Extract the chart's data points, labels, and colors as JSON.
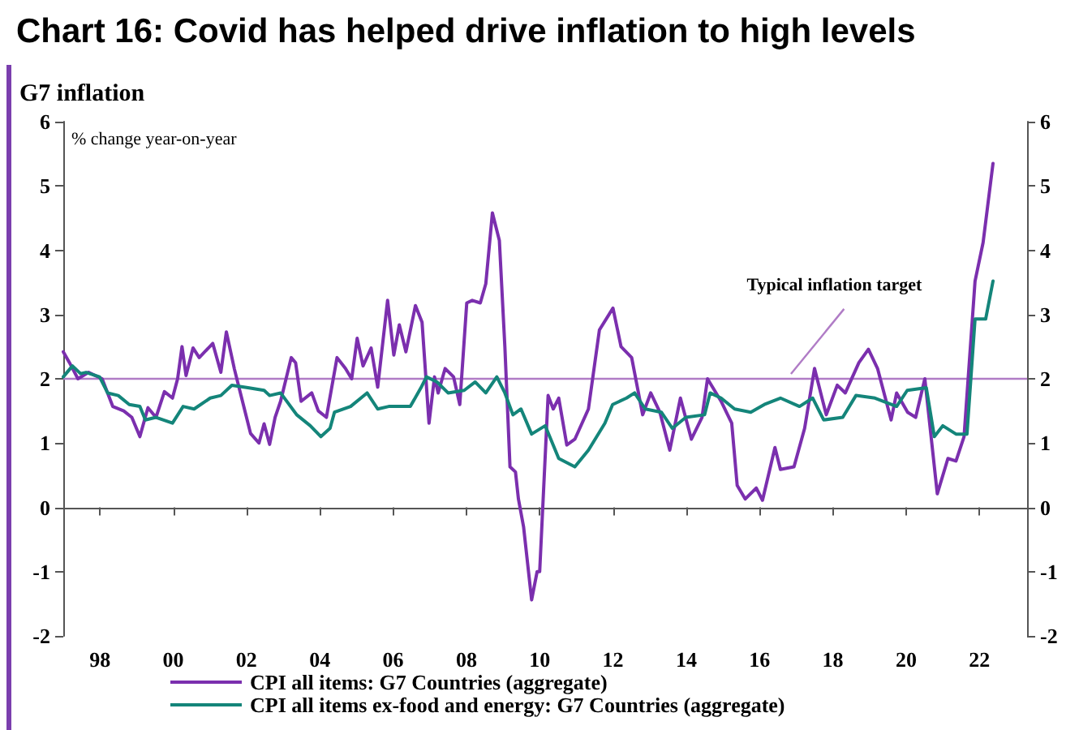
{
  "chart_data": {
    "type": "line",
    "title": "Chart 16: Covid has helped drive inflation to high levels",
    "subtitle": "G7 inflation",
    "ylabel": "% change year-on-year",
    "xlim": [
      1997,
      2023.3
    ],
    "xticks": [
      {
        "value": 1998,
        "label": "98"
      },
      {
        "value": 2000,
        "label": "00"
      },
      {
        "value": 2002,
        "label": "02"
      },
      {
        "value": 2004,
        "label": "04"
      },
      {
        "value": 2006,
        "label": "06"
      },
      {
        "value": 2008,
        "label": "08"
      },
      {
        "value": 2010,
        "label": "10"
      },
      {
        "value": 2012,
        "label": "12"
      },
      {
        "value": 2014,
        "label": "14"
      },
      {
        "value": 2016,
        "label": "16"
      },
      {
        "value": 2018,
        "label": "18"
      },
      {
        "value": 2020,
        "label": "20"
      },
      {
        "value": 2022,
        "label": "22"
      }
    ],
    "ylim": [
      -2,
      6
    ],
    "yticks": [
      -2,
      -1,
      0,
      1,
      2,
      3,
      4,
      5,
      6
    ],
    "y2lim": [
      -2,
      6
    ],
    "y2ticks": [
      -2,
      -1,
      0,
      1,
      2,
      3,
      4,
      5,
      6
    ],
    "grid": false,
    "legend": "bottom",
    "marker": "none",
    "line_style": "solid",
    "ref_lines": [
      {
        "axis": "y",
        "value": 2,
        "label": "Typical inflation target",
        "color": "#b07cc6"
      }
    ],
    "series": [
      {
        "name": "CPI all items: G7 Countries (aggregate)",
        "color": "#7b2fae",
        "x": [
          1997.0,
          1997.17,
          1997.4,
          1997.69,
          1998.06,
          1998.35,
          1998.65,
          1998.87,
          1999.09,
          1999.31,
          1999.53,
          1999.76,
          1999.98,
          2000.12,
          2000.24,
          2000.35,
          2000.54,
          2000.71,
          2001.08,
          2001.3,
          2001.45,
          2001.67,
          2001.89,
          2002.11,
          2002.34,
          2002.48,
          2002.63,
          2002.78,
          2002.93,
          2003.22,
          2003.34,
          2003.49,
          2003.78,
          2003.96,
          2004.18,
          2004.47,
          2004.7,
          2004.87,
          2005.02,
          2005.18,
          2005.4,
          2005.58,
          2005.85,
          2006.02,
          2006.17,
          2006.35,
          2006.61,
          2006.79,
          2006.98,
          2007.13,
          2007.23,
          2007.42,
          2007.65,
          2007.82,
          2008.01,
          2008.16,
          2008.38,
          2008.53,
          2008.71,
          2008.9,
          2009.05,
          2009.19,
          2009.34,
          2009.42,
          2009.56,
          2009.78,
          2009.93,
          2010.0,
          2010.23,
          2010.37,
          2010.52,
          2010.74,
          2010.96,
          2011.33,
          2011.63,
          2012.0,
          2012.22,
          2012.51,
          2012.81,
          2013.03,
          2013.28,
          2013.55,
          2013.84,
          2014.14,
          2014.43,
          2014.58,
          2014.95,
          2015.24,
          2015.39,
          2015.61,
          2015.91,
          2016.08,
          2016.42,
          2016.57,
          2016.94,
          2017.23,
          2017.5,
          2017.82,
          2018.12,
          2018.34,
          2018.71,
          2018.97,
          2019.22,
          2019.59,
          2019.74,
          2020.04,
          2020.26,
          2020.51,
          2020.85,
          2021.14,
          2021.36,
          2021.58,
          2021.88,
          2022.1,
          2022.37
        ],
        "values": [
          2.42,
          2.25,
          2.0,
          2.1,
          2.0,
          1.57,
          1.5,
          1.4,
          1.1,
          1.55,
          1.4,
          1.8,
          1.7,
          2.0,
          2.5,
          2.05,
          2.48,
          2.33,
          2.55,
          2.1,
          2.73,
          2.15,
          1.65,
          1.15,
          1.0,
          1.3,
          0.98,
          1.4,
          1.65,
          2.33,
          2.25,
          1.65,
          1.78,
          1.5,
          1.4,
          2.33,
          2.16,
          2.0,
          2.63,
          2.2,
          2.48,
          1.87,
          3.22,
          2.37,
          2.84,
          2.42,
          3.14,
          2.88,
          1.31,
          2.03,
          1.78,
          2.16,
          2.03,
          1.6,
          3.18,
          3.22,
          3.18,
          3.48,
          4.58,
          4.15,
          2.5,
          0.63,
          0.55,
          0.13,
          -0.3,
          -1.44,
          -1.0,
          -1.0,
          1.74,
          1.53,
          1.7,
          0.97,
          1.06,
          1.53,
          2.76,
          3.1,
          2.5,
          2.33,
          1.44,
          1.78,
          1.48,
          0.89,
          1.7,
          1.06,
          1.4,
          2.0,
          1.65,
          1.31,
          0.34,
          0.13,
          0.3,
          0.11,
          0.93,
          0.59,
          0.63,
          1.23,
          2.16,
          1.44,
          1.9,
          1.78,
          2.25,
          2.46,
          2.16,
          1.36,
          1.78,
          1.48,
          1.4,
          2.0,
          0.21,
          0.76,
          0.72,
          1.1,
          3.52,
          4.12,
          5.35
        ]
      },
      {
        "name": "CPI all items ex-food and energy: G7 Countries (aggregate)",
        "color": "#14857a",
        "x": [
          1997.0,
          1997.25,
          1997.47,
          1997.62,
          1997.99,
          1998.21,
          1998.5,
          1998.8,
          1999.09,
          1999.24,
          1999.53,
          1999.98,
          2000.27,
          2000.57,
          2001.01,
          2001.3,
          2001.6,
          2002.04,
          2002.48,
          2002.63,
          2002.93,
          2003.37,
          2003.74,
          2004.03,
          2004.28,
          2004.4,
          2004.84,
          2005.29,
          2005.58,
          2005.88,
          2006.47,
          2006.76,
          2006.91,
          2007.2,
          2007.5,
          2007.94,
          2008.24,
          2008.53,
          2008.83,
          2009.05,
          2009.27,
          2009.49,
          2009.78,
          2010.15,
          2010.52,
          2010.96,
          2011.33,
          2011.78,
          2011.99,
          2012.37,
          2012.59,
          2012.88,
          2013.32,
          2013.62,
          2013.99,
          2014.5,
          2014.65,
          2014.95,
          2015.32,
          2015.76,
          2016.13,
          2016.57,
          2017.09,
          2017.45,
          2017.75,
          2018.27,
          2018.63,
          2019.15,
          2019.74,
          2020.03,
          2020.55,
          2020.77,
          2021.0,
          2021.36,
          2021.66,
          2021.88,
          2022.17,
          2022.37
        ],
        "values": [
          2.03,
          2.2,
          2.08,
          2.1,
          2.03,
          1.78,
          1.74,
          1.6,
          1.57,
          1.36,
          1.4,
          1.31,
          1.57,
          1.53,
          1.7,
          1.74,
          1.9,
          1.86,
          1.82,
          1.74,
          1.78,
          1.44,
          1.27,
          1.1,
          1.23,
          1.48,
          1.57,
          1.78,
          1.53,
          1.57,
          1.57,
          1.86,
          2.03,
          1.95,
          1.78,
          1.82,
          1.95,
          1.78,
          2.03,
          1.78,
          1.44,
          1.53,
          1.14,
          1.27,
          0.76,
          0.63,
          0.89,
          1.31,
          1.6,
          1.7,
          1.78,
          1.53,
          1.48,
          1.23,
          1.4,
          1.44,
          1.78,
          1.7,
          1.53,
          1.48,
          1.6,
          1.7,
          1.57,
          1.7,
          1.36,
          1.4,
          1.74,
          1.7,
          1.57,
          1.82,
          1.86,
          1.1,
          1.27,
          1.14,
          1.14,
          2.93,
          2.93,
          3.52
        ]
      }
    ]
  }
}
